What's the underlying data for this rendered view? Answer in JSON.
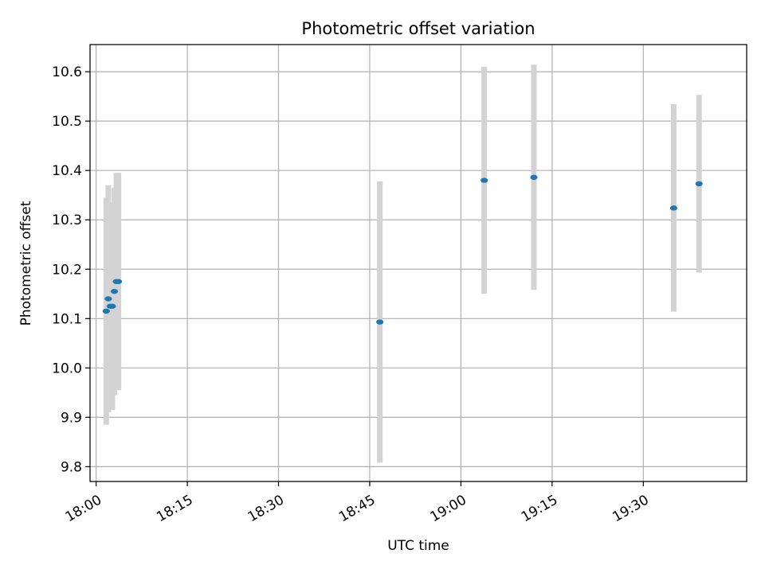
{
  "chart_data": {
    "type": "scatter",
    "title": "Photometric offset variation",
    "xlabel": "UTC time",
    "ylabel": "Photometric offset",
    "x_ticks": [
      "18:00",
      "18:15",
      "18:30",
      "18:45",
      "19:00",
      "19:15",
      "19:30"
    ],
    "y_ticks": [
      "9.8",
      "9.9",
      "10.0",
      "10.1",
      "10.2",
      "10.3",
      "10.4",
      "10.5",
      "10.6"
    ],
    "xlim": [
      "17:59:00",
      "19:47:00"
    ],
    "ylim": [
      9.77,
      10.655
    ],
    "grid": true,
    "colors": {
      "point": "#1f77b4",
      "errorbar": "#d3d3d3",
      "grid": "#b0b0b0"
    },
    "points": [
      {
        "time": "18:01:40",
        "y": 10.115,
        "err": 0.23
      },
      {
        "time": "18:02:00",
        "y": 10.14,
        "err": 0.23
      },
      {
        "time": "18:02:20",
        "y": 10.125,
        "err": 0.205
      },
      {
        "time": "18:02:40",
        "y": 10.125,
        "err": 0.21
      },
      {
        "time": "18:03:00",
        "y": 10.155,
        "err": 0.21
      },
      {
        "time": "18:03:20",
        "y": 10.175,
        "err": 0.22
      },
      {
        "time": "18:03:40",
        "y": 10.175,
        "err": 0.22
      },
      {
        "time": "18:46:40",
        "y": 10.093,
        "err": 0.285
      },
      {
        "time": "19:03:50",
        "y": 10.38,
        "err": 0.23
      },
      {
        "time": "19:12:00",
        "y": 10.386,
        "err": 0.228
      },
      {
        "time": "19:35:00",
        "y": 10.324,
        "err": 0.21
      },
      {
        "time": "19:39:10",
        "y": 10.373,
        "err": 0.18
      }
    ]
  }
}
